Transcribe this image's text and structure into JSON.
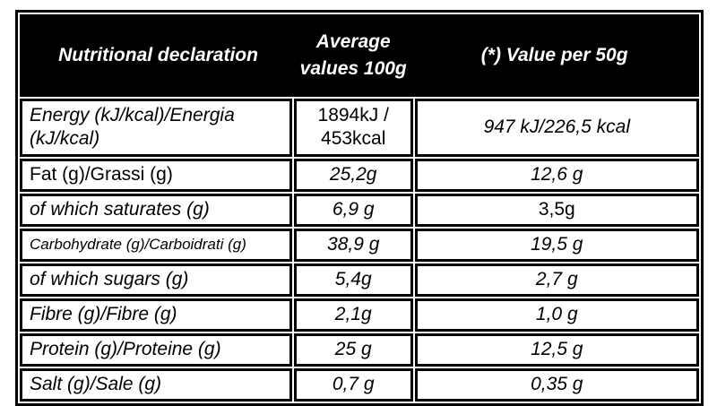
{
  "colors": {
    "header_bg": "#000000",
    "header_text": "#ffffff",
    "border": "#000000",
    "body_bg": "#ffffff",
    "body_text": "#000000"
  },
  "table": {
    "header": {
      "col1": "Nutritional declaration",
      "col2_lines": [
        "Average",
        "values 100g"
      ],
      "col3": "(*) Value per 50g"
    },
    "rows": [
      {
        "label": "Energy (kJ/kcal)/Energia (kJ/kcal)",
        "per100g_lines": [
          "1894kJ /",
          "453kcal"
        ],
        "per50g": "947 kJ/226,5 kcal"
      },
      {
        "label": "Fat (g)/Grassi (g)",
        "per100g": "25,2g",
        "per50g": "12,6 g"
      },
      {
        "label": "of which saturates (g)",
        "per100g": "6,9 g",
        "per50g": "3,5g"
      },
      {
        "label": "Carbohydrate (g)/Carboidrati (g)",
        "per100g": "38,9 g",
        "per50g": "19,5 g"
      },
      {
        "label": "of which sugars (g)",
        "per100g": "5,4g",
        "per50g": "2,7 g"
      },
      {
        "label": "Fibre (g)/Fibre (g)",
        "per100g": "2,1g",
        "per50g": "1,0 g"
      },
      {
        "label": "Protein (g)/Proteine (g)",
        "per100g": "25 g",
        "per50g": "12,5 g"
      },
      {
        "label": "Salt (g)/Sale (g)",
        "per100g": "0,7 g",
        "per50g": "0,35 g"
      }
    ]
  }
}
